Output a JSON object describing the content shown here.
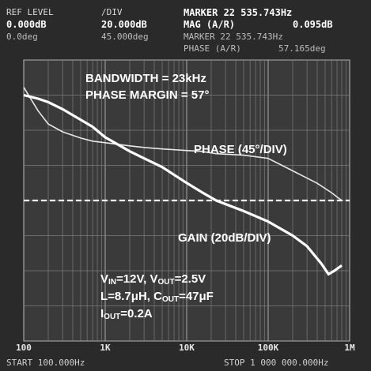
{
  "header": {
    "ref_label": "REF LEVEL",
    "ref_value_1": "0.000dB",
    "ref_value_2": "0.0deg",
    "div_label": "/DIV",
    "div_value_1": "20.000dB",
    "div_value_2": "45.000deg",
    "marker_1": "MARKER 22 535.743Hz",
    "mag_label": "MAG (A/R)",
    "mag_value": "0.095dB",
    "marker_2": "MARKER 22 535.743Hz",
    "phase_label": "PHASE (A/R)",
    "phase_value": "57.165deg"
  },
  "annotations": {
    "bandwidth": "BANDWIDTH = 23kHz",
    "phase_margin": "PHASE MARGIN = 57°",
    "phase_trace": "PHASE (45°/DIV)",
    "gain_trace": "GAIN (20dB/DIV)",
    "vin_sym": "V",
    "vin_sub": "IN",
    "vin_val": "=12V, ",
    "vout_sym": "V",
    "vout_sub": "OUT",
    "vout_val": "=2.5V",
    "l_c": "L=8.7μH, C",
    "cout_sub": "OUT",
    "cout_val": "=47μF",
    "iout_sym": "I",
    "iout_sub": "OUT",
    "iout_val": "=0.2A"
  },
  "footer": {
    "start": "START 100.000Hz",
    "stop": "STOP 1 000 000.000Hz"
  },
  "chart_data": {
    "type": "line",
    "x_scale": "log",
    "xlim": [
      100,
      1000000
    ],
    "x_ticks": [
      100,
      1000,
      10000,
      100000,
      1000000
    ],
    "x_tick_labels": [
      "100",
      "1K",
      "10K",
      "100K",
      "1M"
    ],
    "reference_level_db": 0,
    "gain_db_per_div": 20,
    "phase_deg_per_div": 45,
    "grid": true,
    "series": [
      {
        "name": "GAIN (20dB/DIV)",
        "x": [
          100,
          150,
          200,
          300,
          500,
          700,
          1000,
          2000,
          3000,
          5000,
          10000,
          15000,
          23000,
          50000,
          100000,
          200000,
          300000,
          450000,
          550000,
          650000,
          800000
        ],
        "y": [
          60,
          58,
          56,
          52,
          46,
          42,
          36,
          28,
          24,
          19,
          10,
          5,
          0,
          -6,
          -12,
          -20,
          -26,
          -36,
          -42,
          -40,
          -37
        ]
      },
      {
        "name": "PHASE (45°/DIV)",
        "x": [
          100,
          150,
          200,
          300,
          500,
          700,
          1000,
          2000,
          3000,
          5000,
          10000,
          15000,
          23000,
          50000,
          100000,
          200000,
          400000,
          600000,
          800000
        ],
        "y": [
          145,
          115,
          98,
          88,
          80,
          76,
          74,
          70,
          68,
          66,
          64,
          63,
          60,
          58,
          54,
          38,
          22,
          10,
          0
        ]
      }
    ]
  }
}
